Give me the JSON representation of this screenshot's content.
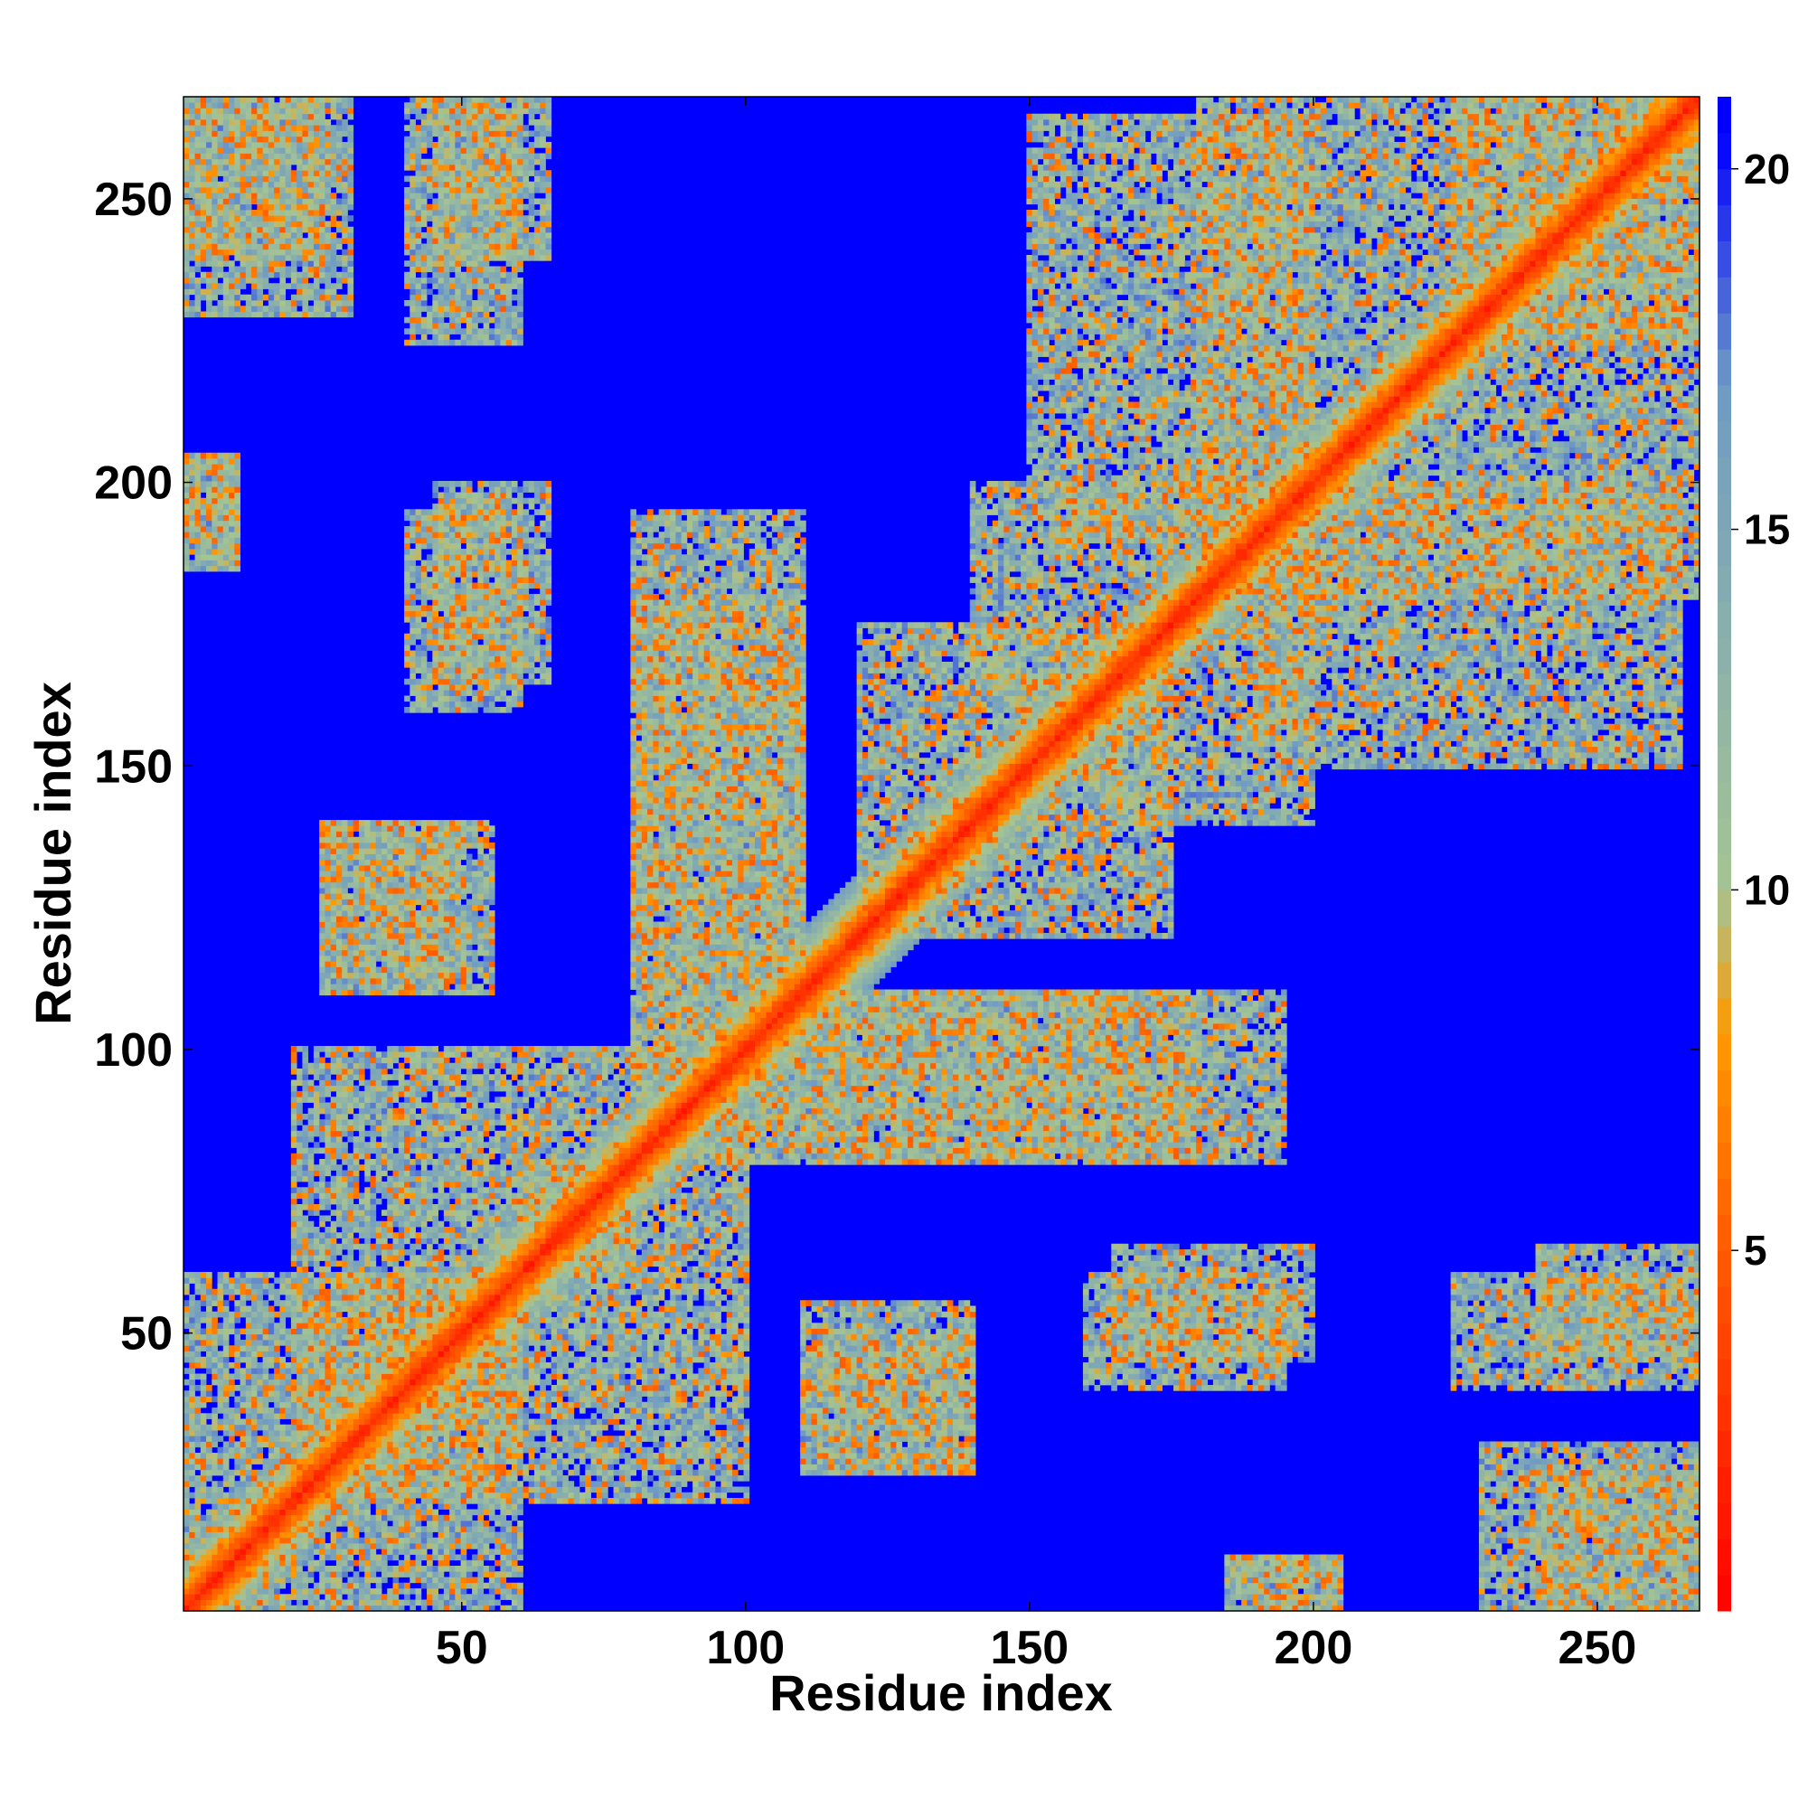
{
  "chart_data": {
    "type": "heatmap",
    "title": "",
    "xlabel": "Residue index",
    "ylabel": "Residue index",
    "n_residues": 268,
    "xlim": [
      1,
      268
    ],
    "ylim": [
      1,
      268
    ],
    "x_ticks": [
      50,
      100,
      150,
      200,
      250
    ],
    "y_ticks": [
      50,
      100,
      150,
      200,
      250
    ],
    "colorbar": {
      "range": [
        0,
        21
      ],
      "ticks": [
        5,
        10,
        15,
        20
      ],
      "colors": [
        "#ff0000",
        "#ff5a00",
        "#ff9a00",
        "#a5c493",
        "#6f9bc4",
        "#0000ff"
      ],
      "stops": [
        0,
        5,
        8,
        10,
        17,
        20.5
      ]
    },
    "diagonal_band": {
      "width_residues": 12
    },
    "contact_regions": [
      {
        "x": [
          1,
          60
        ],
        "y": [
          1,
          60
        ]
      },
      {
        "x": [
          60,
          80
        ],
        "y": [
          60,
          80
        ]
      },
      {
        "x": [
          20,
          90
        ],
        "y": [
          20,
          100
        ]
      },
      {
        "x": [
          95,
          195
        ],
        "y": [
          80,
          110
        ]
      },
      {
        "x": [
          80,
          110
        ],
        "y": [
          95,
          180
        ]
      },
      {
        "x": [
          120,
          175
        ],
        "y": [
          120,
          175
        ]
      },
      {
        "x": [
          160,
          200
        ],
        "y": [
          140,
          200
        ]
      },
      {
        "x": [
          150,
          200
        ],
        "y": [
          190,
          265
        ]
      },
      {
        "x": [
          185,
          268
        ],
        "y": [
          180,
          260
        ]
      },
      {
        "x": [
          225,
          268
        ],
        "y": [
          225,
          268
        ]
      },
      {
        "x": [
          35,
          60
        ],
        "y": [
          40,
          60
        ]
      },
      {
        "x": [
          45,
          65
        ],
        "y": [
          240,
          268
        ]
      },
      {
        "x": [
          1,
          25
        ],
        "y": [
          240,
          268
        ]
      },
      {
        "x": [
          45,
          65
        ],
        "y": [
          165,
          200
        ]
      },
      {
        "x": [
          25,
          55
        ],
        "y": [
          110,
          140
        ]
      },
      {
        "x": [
          110,
          140
        ],
        "y": [
          25,
          50
        ]
      },
      {
        "x": [
          160,
          195
        ],
        "y": [
          40,
          60
        ]
      },
      {
        "x": [
          225,
          268
        ],
        "y": [
          40,
          60
        ]
      },
      {
        "x": [
          230,
          268
        ],
        "y": [
          1,
          30
        ]
      },
      {
        "x": [
          185,
          205
        ],
        "y": [
          1,
          10
        ]
      },
      {
        "x": [
          1,
          10
        ],
        "y": [
          185,
          205
        ]
      }
    ]
  }
}
